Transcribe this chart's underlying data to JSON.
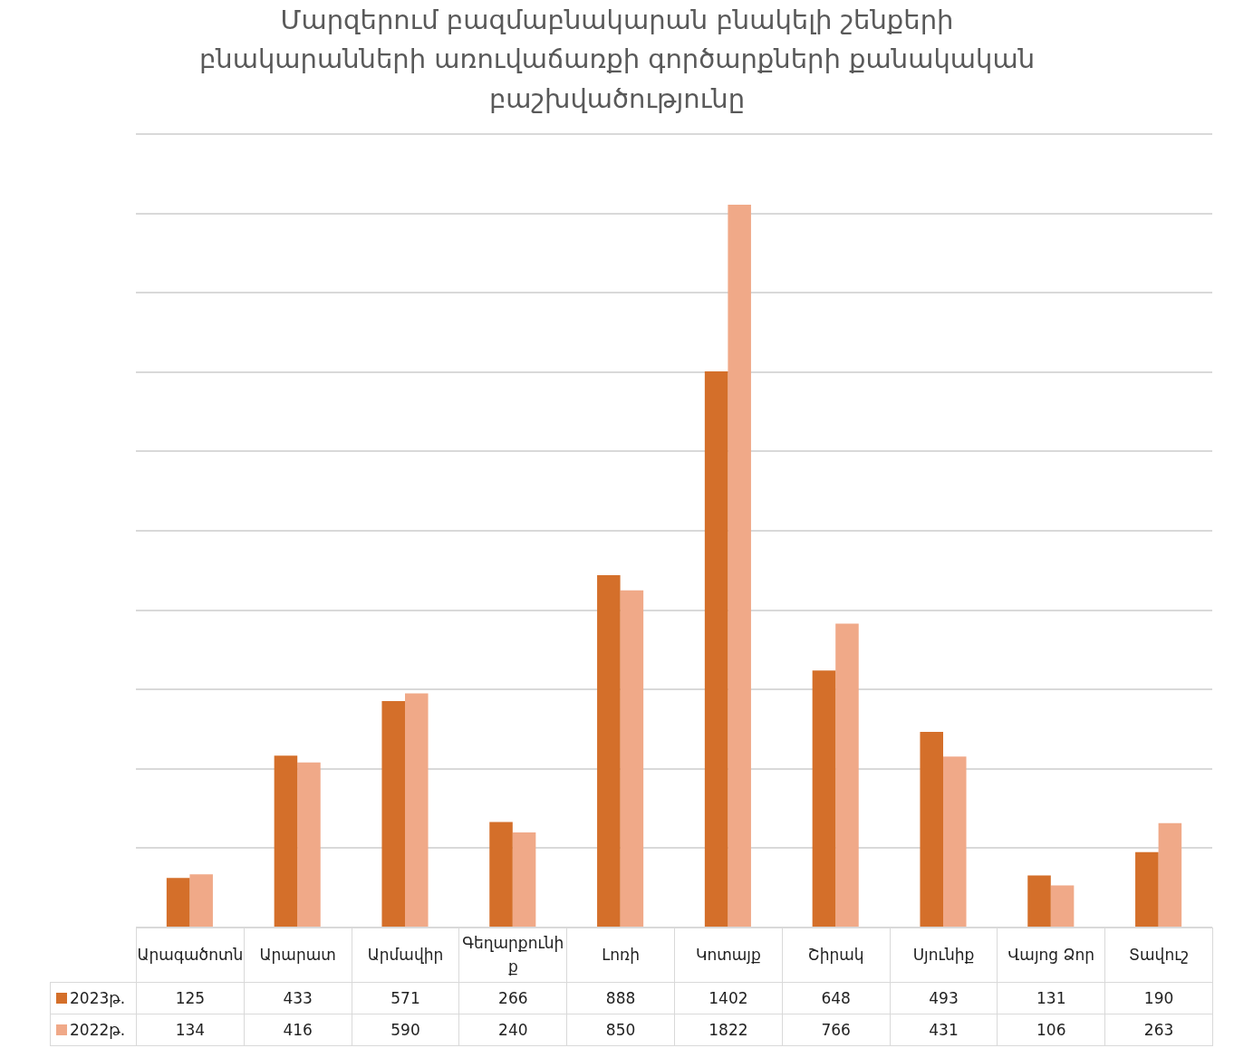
{
  "chart_data": {
    "type": "bar",
    "title": "Մարզերում բազմաբնակարան բնակելի շենքերի բնակարանների առուվաճառքի գործարքների քանակական բաշխվածությունը",
    "categories": [
      "Արագածոտն",
      "Արարատ",
      "Արմավիր",
      "Գեղարքունիք",
      "Լոռի",
      "Կոտայք",
      "Շիրակ",
      "Սյունիք",
      "Վայոց  Ձոր",
      "Տավուշ"
    ],
    "series": [
      {
        "name": "2023թ.",
        "color": "#d46f2a",
        "values": [
          125,
          433,
          571,
          266,
          888,
          1402,
          648,
          493,
          131,
          190
        ]
      },
      {
        "name": "2022թ.",
        "color": "#f0a988",
        "values": [
          134,
          416,
          590,
          240,
          850,
          1822,
          766,
          431,
          106,
          263
        ]
      }
    ],
    "ylim": [
      0,
      2000
    ],
    "yticks": [
      {
        "value": 0,
        "label": null
      },
      {
        "value": 200,
        "label": null
      },
      {
        "value": 400,
        "label": null
      },
      {
        "value": 600,
        "label": null
      },
      {
        "value": 800,
        "label": null
      },
      {
        "value": 1000,
        "label": null
      },
      {
        "value": 1200,
        "label": null
      },
      {
        "value": 1400,
        "label": null
      },
      {
        "value": 1600,
        "label": null
      },
      {
        "value": 1800,
        "label": null
      },
      {
        "value": 2000,
        "label": null
      }
    ],
    "grid": "y",
    "tick_labels": "x",
    "data_labels": true,
    "legend": "bottom left"
  }
}
